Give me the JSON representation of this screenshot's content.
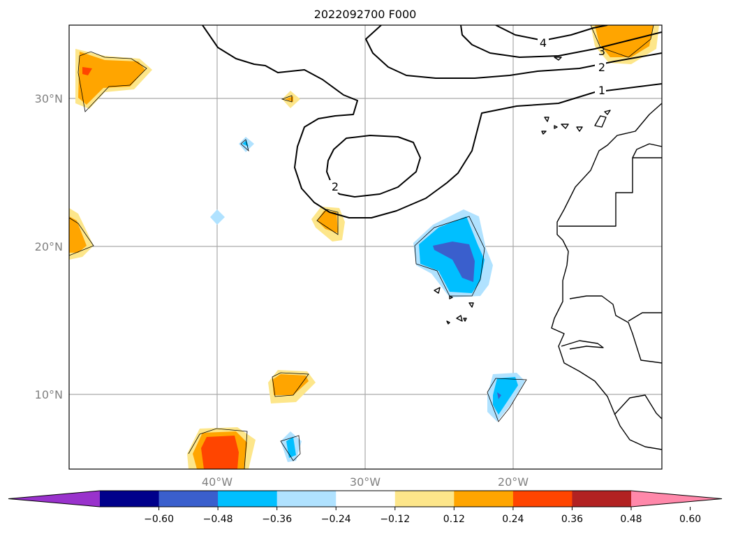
{
  "title": "2022092700 F000",
  "map": {
    "lon_range": [
      -50,
      -10
    ],
    "lat_range": [
      5,
      35
    ],
    "lat_ticks": [
      {
        "value": 30,
        "label": "30°N"
      },
      {
        "value": 20,
        "label": "20°N"
      },
      {
        "value": 10,
        "label": "10°N"
      }
    ],
    "lon_ticks": [
      {
        "value": -40,
        "label": "40°W"
      },
      {
        "value": -30,
        "label": "30°W"
      },
      {
        "value": -20,
        "label": "20°W"
      }
    ],
    "contour_labels": [
      "4",
      "3",
      "2",
      "1",
      "2"
    ],
    "gridlines": true
  },
  "colorbar": {
    "colors": [
      "#9932cc",
      "#00008b",
      "#3a5fcd",
      "#00bfff",
      "#b0e2ff",
      "#ffffff",
      "#fde68a",
      "#ffa500",
      "#ff4500",
      "#b22222",
      "#ff88aa"
    ],
    "tick_labels": [
      "−0.60",
      "−0.48",
      "−0.36",
      "−0.24",
      "−0.12",
      "0.12",
      "0.24",
      "0.36",
      "0.48",
      "0.60"
    ],
    "extend": "both"
  }
}
